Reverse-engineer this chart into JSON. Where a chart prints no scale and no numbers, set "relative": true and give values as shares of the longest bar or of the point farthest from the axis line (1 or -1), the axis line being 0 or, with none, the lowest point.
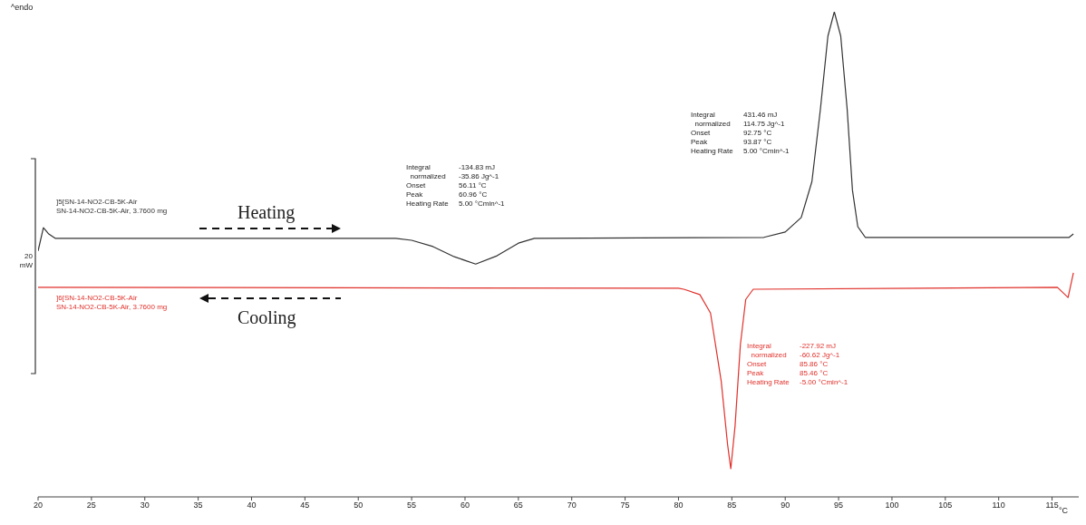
{
  "chart_data": {
    "type": "line",
    "relative": true,
    "xlim": [
      20,
      117.5
    ],
    "xticks": [
      20,
      25,
      30,
      35,
      40,
      45,
      50,
      55,
      60,
      65,
      70,
      75,
      80,
      85,
      90,
      95,
      100,
      105,
      110,
      115
    ],
    "xlabel": "°C",
    "legend": false,
    "grid": false,
    "marker": "none",
    "line_style": "solid",
    "series": [
      {
        "name": "]5[SN-14-NO2-CB-5K-Air\nSN-14-NO2-CB-5K-Air, 3.7600 mg",
        "color": "#333333",
        "x": [
          20,
          20.5,
          21,
          21.6,
          53.5,
          55,
          57,
          59,
          61,
          63,
          65,
          66.5,
          88,
          90,
          91.5,
          92.5,
          93.3,
          94,
          94.6,
          95.2,
          95.8,
          96.3,
          96.8,
          97.5,
          116.6,
          117
        ],
        "values": [
          0.507,
          0.555,
          0.542,
          0.533,
          0.533,
          0.529,
          0.516,
          0.495,
          0.48,
          0.497,
          0.523,
          0.533,
          0.535,
          0.546,
          0.576,
          0.65,
          0.8,
          0.95,
          1,
          0.95,
          0.8,
          0.632,
          0.557,
          0.535,
          0.535,
          0.542
        ]
      },
      {
        "name": "]6[SN-14-NO2-CB-5K-Air\nSN-14-NO2-CB-5K-Air, 3.7600 mg",
        "color": "#e0302a",
        "x": [
          20,
          80,
          80.5,
          82,
          83,
          84,
          84.6,
          84.9,
          85.3,
          85.8,
          86.3,
          87,
          115.5,
          116.5,
          117
        ],
        "values": [
          0.432,
          0.43,
          0.428,
          0.417,
          0.379,
          0.239,
          0.108,
          0.058,
          0.146,
          0.314,
          0.407,
          0.428,
          0.432,
          0.411,
          0.462
        ]
      }
    ],
    "annotations": [
      "^endo",
      "20\nmW",
      "Heating",
      "Cooling",
      "Integral\t-134.83 mJ\n  normalized\t-35.86 Jg^-1\nOnset\t56.11 °C\nPeak\t60.96 °C\nHeating Rate\t5.00 °Cmin^-1",
      "Integral\t431.46 mJ\n  normalized\t114.75 Jg^-1\nOnset\t92.75 °C\nPeak\t93.87 °C\nHeating Rate\t5.00 °Cmin^-1",
      "Integral\t-227.92 mJ\n  normalized\t-60.62 Jg^-1\nOnset\t85.86 °C\nPeak\t85.46 °C\nHeating Rate\t-5.00 °Cmin^-1"
    ]
  }
}
